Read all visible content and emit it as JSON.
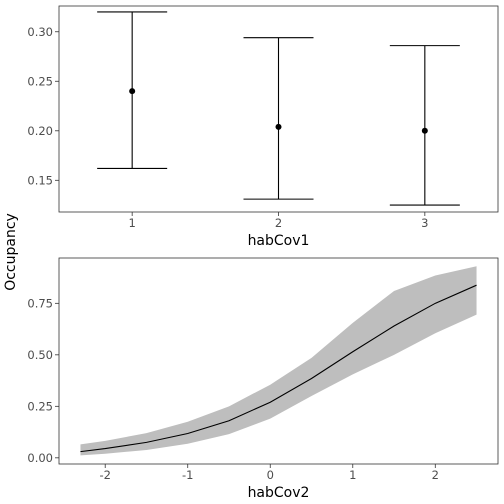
{
  "shared": {
    "ylabel": "Occupancy"
  },
  "chart_data": [
    {
      "type": "scatter",
      "subtype": "errorbar",
      "xlabel": "habCov1",
      "categories": [
        "1",
        "2",
        "3"
      ],
      "series": [
        {
          "values": [
            0.24,
            0.204,
            0.2
          ],
          "lower": [
            0.162,
            0.131,
            0.125
          ],
          "upper": [
            0.32,
            0.294,
            0.286
          ]
        }
      ],
      "ylim": [
        0.118,
        0.326
      ],
      "yticks": [
        0.15,
        0.2,
        0.25,
        0.3
      ],
      "ytick_labels": [
        "0.15",
        "0.20",
        "0.25",
        "0.30"
      ],
      "grid": false
    },
    {
      "type": "line",
      "subtype": "line-with-ribbon",
      "xlabel": "habCov2",
      "x": [
        -2.3,
        -2.0,
        -1.5,
        -1.0,
        -0.5,
        0.0,
        0.5,
        1.0,
        1.5,
        2.0,
        2.5
      ],
      "series": [
        {
          "values": [
            0.03,
            0.045,
            0.075,
            0.118,
            0.18,
            0.27,
            0.385,
            0.515,
            0.64,
            0.75,
            0.838
          ],
          "lower": [
            0.012,
            0.02,
            0.038,
            0.068,
            0.115,
            0.19,
            0.3,
            0.405,
            0.5,
            0.605,
            0.695
          ],
          "upper": [
            0.065,
            0.082,
            0.12,
            0.175,
            0.25,
            0.355,
            0.485,
            0.655,
            0.81,
            0.885,
            0.93
          ]
        }
      ],
      "xlim": [
        -2.56,
        2.76
      ],
      "ylim": [
        -0.03,
        0.97
      ],
      "xticks": [
        -2,
        -1,
        0,
        1,
        2
      ],
      "xtick_labels": [
        "-2",
        "-1",
        "0",
        "1",
        "2"
      ],
      "yticks": [
        0.0,
        0.25,
        0.5,
        0.75
      ],
      "ytick_labels": [
        "0.00",
        "0.25",
        "0.50",
        "0.75"
      ],
      "ribbon_color": "#bebebe",
      "grid": false
    }
  ]
}
